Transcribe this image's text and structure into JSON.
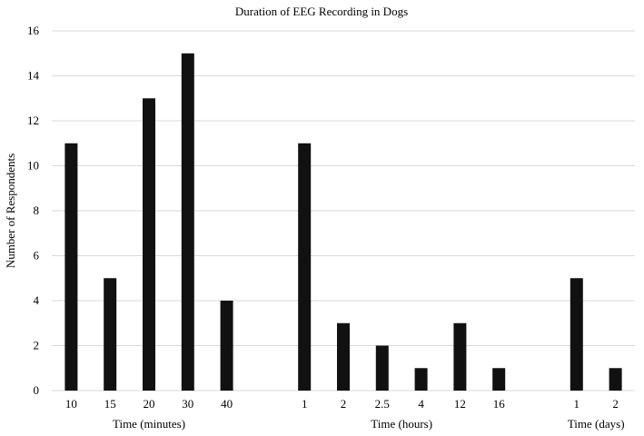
{
  "chart_data": {
    "type": "bar",
    "title": "Duration of EEG Recording in Dogs",
    "ylabel": "Number of Respondents",
    "ylim": [
      0,
      16
    ],
    "yticks": [
      0,
      2,
      4,
      6,
      8,
      10,
      12,
      14,
      16
    ],
    "grid": true,
    "bar_color": "#111111",
    "grid_color": "#d9d9d9",
    "groups": [
      {
        "label": "Time (minutes)",
        "categories": [
          "10",
          "15",
          "20",
          "30",
          "40"
        ],
        "values": [
          11,
          5,
          13,
          15,
          4
        ]
      },
      {
        "label": "Time (hours)",
        "categories": [
          "1",
          "2",
          "2.5",
          "4",
          "12",
          "16"
        ],
        "values": [
          11,
          3,
          2,
          1,
          3,
          1
        ]
      },
      {
        "label": "Time (days)",
        "categories": [
          "1",
          "2"
        ],
        "values": [
          5,
          1
        ]
      }
    ]
  }
}
